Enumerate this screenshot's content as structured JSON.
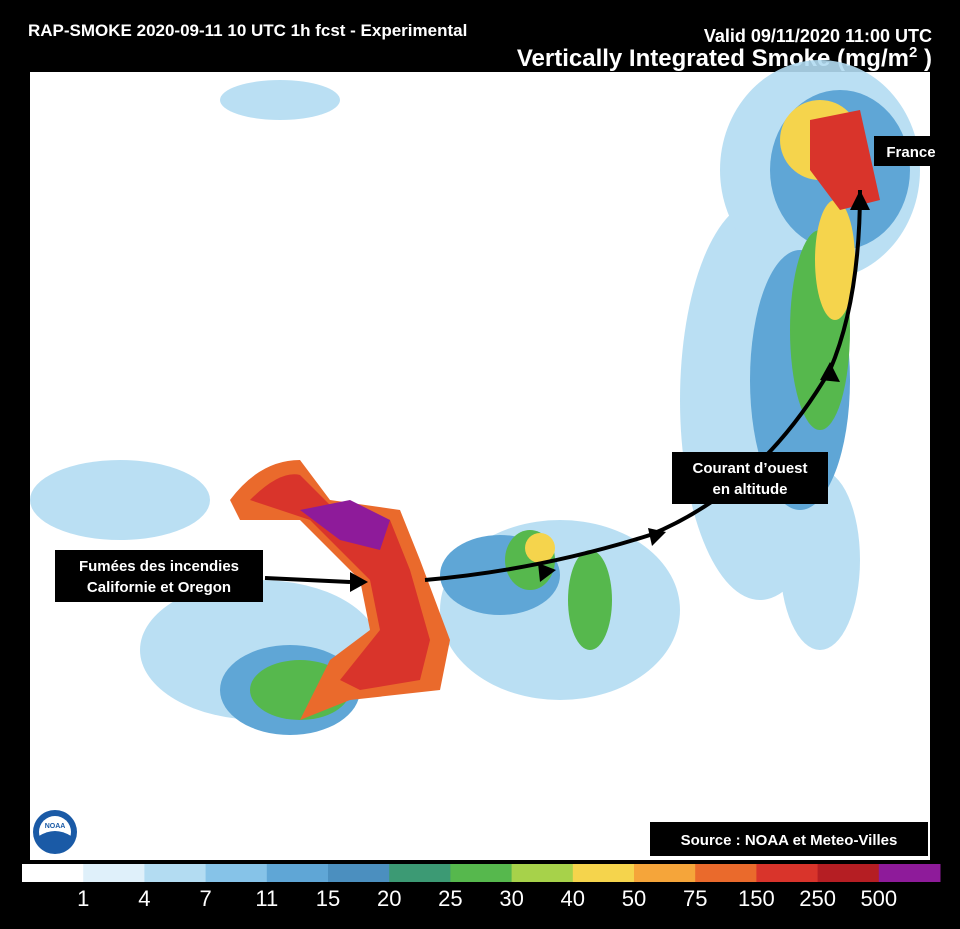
{
  "header": {
    "run": "RAP-SMOKE 2020-09-11 10 UTC 1h fcst - Experimental",
    "valid": "Valid 09/11/2020 11:00 UTC",
    "title": {
      "text": "Vertically Integrated Smoke (mg/m",
      "superscript": "2",
      "end": " )"
    }
  },
  "annotations": {
    "france": "France",
    "current": [
      "Courant d’ouest",
      "en altitude"
    ],
    "fires": [
      "Fumées des incendies",
      "Californie et Oregon"
    ],
    "source": "Source : NOAA et Meteo-Villes",
    "logo": "NOAA"
  },
  "colorbar": {
    "colors": [
      "#ffffff",
      "#dff0fa",
      "#b3dcf2",
      "#86c3e8",
      "#5fa6d6",
      "#4b8fbf",
      "#3c9a74",
      "#56b84d",
      "#a7d24a",
      "#f5d44c",
      "#f5a53a",
      "#ea6a2c",
      "#d9342b",
      "#b51e23",
      "#8e1b9a"
    ],
    "ticks": [
      1,
      4,
      7,
      11,
      15,
      20,
      25,
      30,
      40,
      50,
      75,
      150,
      250,
      500
    ]
  }
}
